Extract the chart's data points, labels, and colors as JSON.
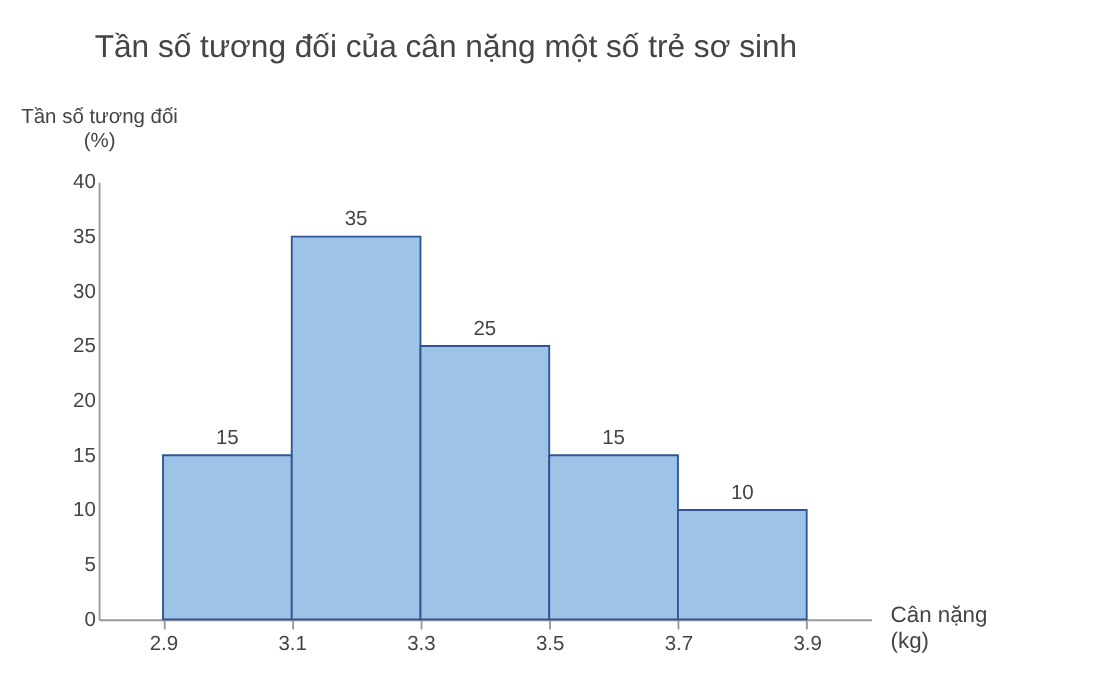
{
  "chart_data": {
    "type": "histogram",
    "title": "Tần số tương đối của cân nặng một số trẻ sơ sinh",
    "xlabel": "Cân nặng (kg)",
    "ylabel": "Tần số tương đối (%)",
    "bins": [
      2.9,
      3.1,
      3.3,
      3.5,
      3.7,
      3.9
    ],
    "values": [
      15,
      35,
      25,
      15,
      10
    ],
    "color": "#9dc3e6",
    "xlim": [
      2.8,
      4.0
    ],
    "xticks": [
      2.9,
      3.1,
      3.3,
      3.5,
      3.7,
      3.9
    ],
    "ylim": [
      0,
      40
    ],
    "yticks": [
      0,
      5,
      10,
      15,
      20,
      25,
      30,
      35,
      40
    ],
    "grid": false,
    "data_labels": true
  }
}
